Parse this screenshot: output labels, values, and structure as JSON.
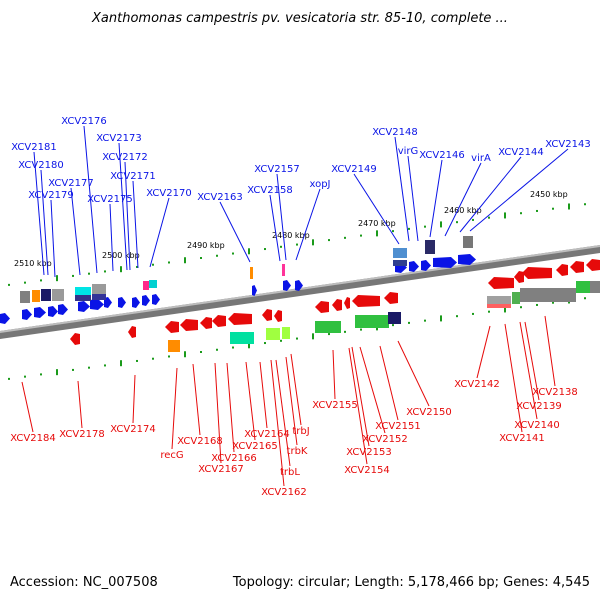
{
  "header": {
    "title": "Xanthomonas campestris pv. vesicatoria str. 85-10, complete ..."
  },
  "footer": {
    "accession": "Accession: NC_007508",
    "topology": "Topology: circular; Length: 5,178,466 bp; Genes: 4,545"
  },
  "colors": {
    "forward": "#0a14e6",
    "reverse": "#e60a0a",
    "tick": "#1a9a1a",
    "backbone": "#777777"
  },
  "scale": [
    "2510 kbp",
    "2500 kbp",
    "2490 kbp",
    "2480 kbp",
    "2470 kbp",
    "2460 kbp",
    "2450 kbp"
  ],
  "forward_genes": [
    "XCV2181",
    "XCV2180",
    "XCV2179",
    "XCV2177",
    "XCV2176",
    "XCV2175",
    "XCV2173",
    "XCV2172",
    "XCV2171",
    "XCV2170",
    "XCV2163",
    "XCV2158",
    "XCV2157",
    "xopJ",
    "XCV2149",
    "XCV2148",
    "virG",
    "XCV2146",
    "virA",
    "XCV2144",
    "XCV2143"
  ],
  "reverse_genes": [
    "XCV2184",
    "XCV2178",
    "XCV2174",
    "recG",
    "XCV2168",
    "XCV2167",
    "XCV2166",
    "XCV2165",
    "XCV2164",
    "trbL",
    "XCV2162",
    "trbK",
    "trbJ",
    "XCV2155",
    "XCV2153",
    "XCV2154",
    "XCV2152",
    "XCV2151",
    "XCV2150",
    "XCV2142",
    "XCV2141",
    "XCV2140",
    "XCV2139",
    "XCV2138"
  ]
}
